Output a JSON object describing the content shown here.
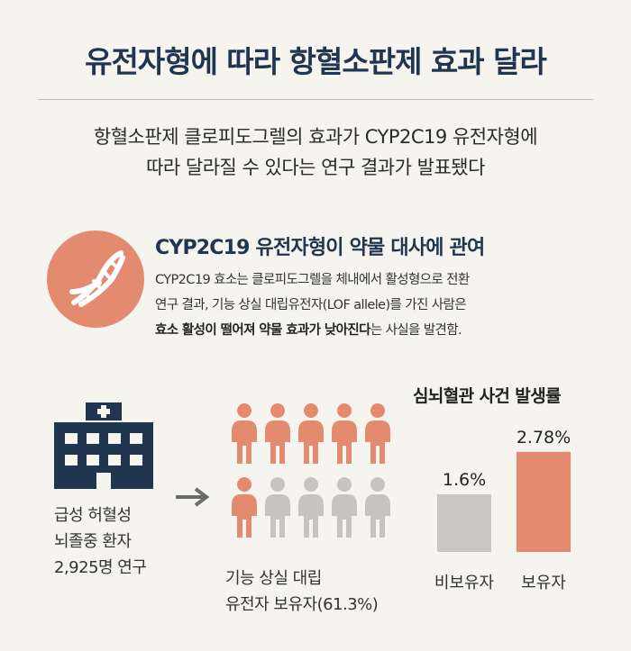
{
  "title": "유전자형에 따라 항혈소판제 효과 달라",
  "subtitle_lines": [
    "항혈소판제 클로피도그렐의 효과가 CYP2C19 유전자형에",
    "따라 달라질 수 있다는 연구 결과가 발표됐다"
  ],
  "section": {
    "icon": "dna-icon",
    "heading": "CYP2C19 유전자형이 약물 대사에 관여",
    "body_line1": "CYP2C19 효소는 클로피도그렐을 체내에서 활성형으로 전환",
    "body_line2": "연구 결과, 기능 상실 대립유전자(LOF allele)를 가진 사람은",
    "body_line3_bold": "효소 활성이 떨어져 약물 효과가 낮아진다",
    "body_line3_rest": "는 사실을 발견함."
  },
  "study": {
    "icon": "hospital-icon",
    "label_lines": [
      "급성 허혈성",
      "뇌졸중 환자",
      "2,925명 연구"
    ]
  },
  "carriers": {
    "icon": "person-icon",
    "label_lines": [
      "기능 상실 대립",
      "유전자 보유자(61.3%)"
    ],
    "fraction": 0.613,
    "total_figures": 10,
    "highlighted_figures": 6,
    "highlight_color": "#e48a6f",
    "base_color": "#c6c4bf"
  },
  "chart_data": {
    "type": "bar",
    "title": "심뇌혈관 사건 발생률",
    "categories": [
      "비보유자",
      "보유자"
    ],
    "values": [
      1.6,
      2.78
    ],
    "value_labels": [
      "1.6%",
      "2.78%"
    ],
    "colors": [
      "#c9c7c2",
      "#e48a6f"
    ],
    "ylim": [
      0,
      3.0
    ]
  },
  "colors": {
    "navy": "#1f3550",
    "coral": "#e48a6f",
    "gray": "#c9c7c2",
    "background": "#f6f4ef"
  }
}
